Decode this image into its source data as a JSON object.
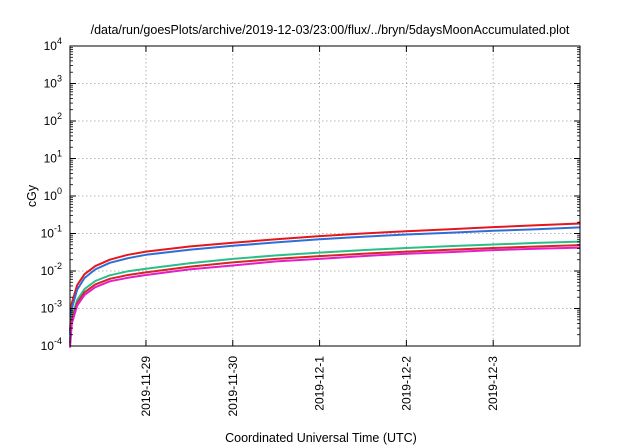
{
  "chart_data": {
    "type": "line",
    "title": "/data/run/goesPlots/archive/2019-12-03/23:00/flux/../bryn/5daysMoonAccumulated.plot",
    "xlabel": "Coordinated Universal Time (UTC)",
    "ylabel": "cGy",
    "xscale": "time",
    "yscale": "log",
    "xlim": [
      "2019-11-28T03:00",
      "2019-12-04T00:00"
    ],
    "ylim": [
      0.0001,
      10000
    ],
    "x_ticks": [
      "2019-11-29",
      "2019-11-30",
      "2019-12-1",
      "2019-12-2",
      "2019-12-3"
    ],
    "x_tick_values": [
      "2019-11-29T00:00",
      "2019-11-30T00:00",
      "2019-12-01T00:00",
      "2019-12-02T00:00",
      "2019-12-03T00:00"
    ],
    "y_ticks": [
      {
        "value": 0.0001,
        "base": "10",
        "exp": "-4"
      },
      {
        "value": 0.001,
        "base": "10",
        "exp": "-3"
      },
      {
        "value": 0.01,
        "base": "10",
        "exp": "-2"
      },
      {
        "value": 0.1,
        "base": "10",
        "exp": "-1"
      },
      {
        "value": 1,
        "base": "10",
        "exp": "0"
      },
      {
        "value": 10,
        "base": "10",
        "exp": "1"
      },
      {
        "value": 100,
        "base": "10",
        "exp": "2"
      },
      {
        "value": 1000,
        "base": "10",
        "exp": "3"
      },
      {
        "value": 10000,
        "base": "10",
        "exp": "4"
      }
    ],
    "grid": true,
    "legend": "none",
    "x": [
      "2019-11-28T03:00",
      "2019-11-28T03:30",
      "2019-11-28T05:00",
      "2019-11-28T07:00",
      "2019-11-28T10:00",
      "2019-11-28T14:00",
      "2019-11-28T19:00",
      "2019-11-29T00:00",
      "2019-11-29T12:00",
      "2019-11-30T00:00",
      "2019-11-30T12:00",
      "2019-12-01T00:00",
      "2019-12-01T12:00",
      "2019-12-02T00:00",
      "2019-12-02T12:00",
      "2019-12-03T00:00",
      "2019-12-03T12:00",
      "2019-12-04T00:00"
    ],
    "series": [
      {
        "color": "#e3171c",
        "values": [
          0.00025,
          0.0014,
          0.0042,
          0.0082,
          0.0135,
          0.02,
          0.027,
          0.033,
          0.045,
          0.057,
          0.07,
          0.085,
          0.1,
          0.115,
          0.13,
          0.148,
          0.165,
          0.185
        ]
      },
      {
        "color": "#2d6fd8",
        "values": [
          0.0002,
          0.001,
          0.0032,
          0.0065,
          0.011,
          0.0165,
          0.022,
          0.027,
          0.037,
          0.047,
          0.058,
          0.07,
          0.082,
          0.094,
          0.105,
          0.118,
          0.13,
          0.145
        ]
      },
      {
        "color": "#29bf8a",
        "values": [
          0.00015,
          0.0006,
          0.0017,
          0.0033,
          0.0054,
          0.0077,
          0.0098,
          0.0115,
          0.016,
          0.021,
          0.026,
          0.031,
          0.036,
          0.041,
          0.046,
          0.051,
          0.056,
          0.061
        ]
      },
      {
        "color": "#d82328",
        "values": [
          0.00012,
          0.0005,
          0.0014,
          0.0027,
          0.0044,
          0.0062,
          0.0078,
          0.0092,
          0.013,
          0.017,
          0.021,
          0.025,
          0.029,
          0.033,
          0.037,
          0.041,
          0.045,
          0.049
        ]
      },
      {
        "color": "#e020c8",
        "values": [
          9e-05,
          0.0004,
          0.0012,
          0.0023,
          0.0037,
          0.0053,
          0.0066,
          0.0078,
          0.011,
          0.014,
          0.018,
          0.021,
          0.025,
          0.029,
          0.032,
          0.036,
          0.039,
          0.042
        ]
      }
    ]
  }
}
